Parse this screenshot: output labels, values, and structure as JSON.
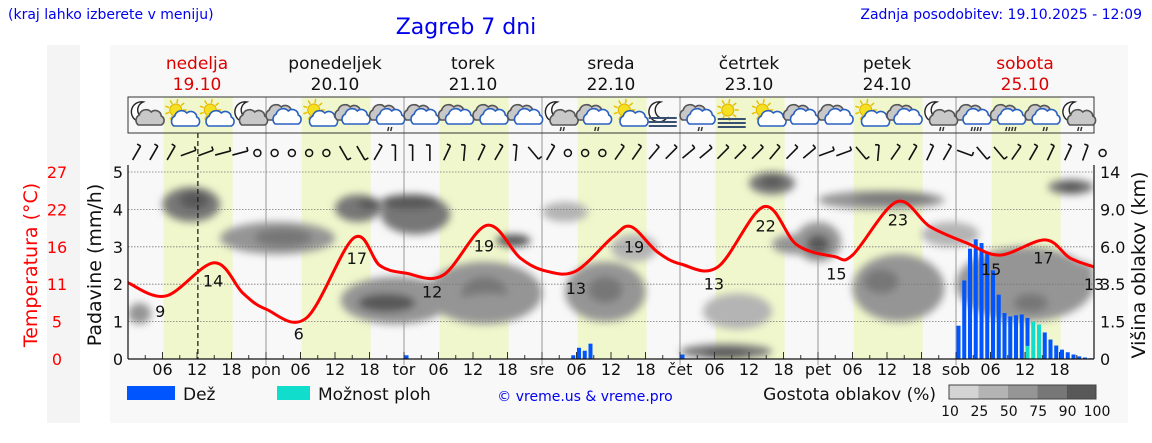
{
  "header": {
    "hint": "(kraj lahko izberete v meniju)",
    "title": "Zagreb 7 dni",
    "updated": "Zadnja posodobitev: 19.10.2025 - 12:09"
  },
  "colors": {
    "temperature": "#ff0000",
    "rain": "#0055ff",
    "showers": "#11ddcc",
    "daylight": "#f0f7cc",
    "weekend_day": "#dd0000",
    "link": "#0000ee"
  },
  "days": [
    {
      "name": "nedelja",
      "date": "19.10",
      "abbr": "",
      "weekend": true
    },
    {
      "name": "ponedeljek",
      "date": "20.10",
      "abbr": "pon",
      "weekend": false
    },
    {
      "name": "torek",
      "date": "21.10",
      "abbr": "tor",
      "weekend": false
    },
    {
      "name": "sreda",
      "date": "22.10",
      "abbr": "sre",
      "weekend": false
    },
    {
      "name": "četrtek",
      "date": "23.10",
      "abbr": "čet",
      "weekend": false
    },
    {
      "name": "petek",
      "date": "24.10",
      "abbr": "pet",
      "weekend": false
    },
    {
      "name": "sobota",
      "date": "25.10",
      "abbr": "sob",
      "weekend": true
    }
  ],
  "hour_ticks": [
    "06",
    "12",
    "18"
  ],
  "current_time": "19.10.2025 12:09",
  "icons": [
    "moon-cloud",
    "sun-cloud",
    "sun-cloud",
    "moon-cloud",
    "cloudy",
    "sun-cloud",
    "cloudy",
    "cloudy-drizzle",
    "cloudy",
    "cloudy",
    "cloudy",
    "cloudy",
    "moon-cloud-drizzle",
    "cloudy-drizzle",
    "sun-cloud",
    "moon-fog",
    "cloudy-drizzle",
    "sun-fog",
    "sun-cloud",
    "cloudy",
    "cloudy",
    "sun-cloud",
    "cloudy",
    "moon-cloud-drizzle",
    "cloudy-rain",
    "cloudy-rain",
    "cloudy-drizzle",
    "moon-cloud-drizzle"
  ],
  "wind_direction_deg_3h": [
    210,
    210,
    210,
    250,
    250,
    255,
    255,
    "calm",
    "calm",
    "calm",
    "calm",
    "calm",
    330,
    330,
    210,
    180,
    180,
    180,
    205,
    185,
    205,
    210,
    185,
    320,
    210,
    "calm",
    "calm",
    "calm",
    215,
    215,
    220,
    225,
    230,
    230,
    225,
    225,
    225,
    220,
    225,
    230,
    250,
    250,
    320,
    185,
    215,
    210,
    205,
    210,
    290,
    320,
    320,
    215,
    210,
    205,
    205,
    200,
    "calm"
  ],
  "chart_data": {
    "type": "line+bar",
    "x_unit": "hours from 19.10 00:00",
    "xlim": [
      0,
      168
    ],
    "left_axis": {
      "label": "Padavine (mm/h)",
      "ticks": [
        "0",
        "1",
        "2",
        "3",
        "4",
        "5"
      ],
      "ylim": [
        0,
        5
      ]
    },
    "temp_axis": {
      "label": "Temperatura (°C)",
      "ticks": [
        "0",
        "5",
        "11",
        "16",
        "22",
        "27"
      ],
      "ylim": [
        0,
        27
      ]
    },
    "right_axis": {
      "label": "Višina oblakov (km)",
      "ticks": [
        "0",
        "1.5",
        "3.5",
        "6.0",
        "9.0",
        "14"
      ]
    },
    "grid": true,
    "daylight_hours": [
      6.2,
      18.2
    ],
    "temperature": {
      "hours": [
        0,
        6.6,
        15,
        20,
        24,
        31,
        39.3,
        43.8,
        48.3,
        54.8,
        62.4,
        68.2,
        72.7,
        77.9,
        84.3,
        87.5,
        92,
        96.2,
        102.6,
        110.6,
        116.3,
        122.8,
        126,
        133.7,
        139.5,
        146,
        151.7,
        159.5,
        163.8,
        168
      ],
      "values": [
        11.0,
        9.1,
        13.9,
        9.5,
        7.2,
        5.9,
        17.5,
        13.5,
        12.4,
        12.1,
        19.3,
        14.6,
        12.7,
        12.7,
        17.6,
        19.1,
        15.5,
        13.7,
        13.3,
        22.0,
        16.5,
        14.8,
        15.0,
        22.7,
        19.1,
        16.7,
        15.0,
        17.2,
        14.6,
        13.3
      ]
    },
    "temperature_labels": [
      {
        "hour": 5.6,
        "value": "9"
      },
      {
        "hour": 14.8,
        "value": "14"
      },
      {
        "hour": 29.7,
        "value": "6"
      },
      {
        "hour": 39.8,
        "value": "17"
      },
      {
        "hour": 52.9,
        "value": "12"
      },
      {
        "hour": 61.9,
        "value": "19"
      },
      {
        "hour": 77.9,
        "value": "13"
      },
      {
        "hour": 88,
        "value": "19"
      },
      {
        "hour": 101.9,
        "value": "13"
      },
      {
        "hour": 110.9,
        "value": "22"
      },
      {
        "hour": 123.2,
        "value": "15"
      },
      {
        "hour": 133.9,
        "value": "23"
      },
      {
        "hour": 150.1,
        "value": "15"
      },
      {
        "hour": 159.2,
        "value": "17"
      },
      {
        "hour": 168,
        "value": "13"
      }
    ],
    "rain": {
      "hours": [
        48,
        77,
        78,
        79,
        80,
        96,
        144,
        145,
        146,
        147,
        148,
        149,
        150,
        151,
        152,
        153,
        154,
        155,
        156,
        159,
        160,
        161,
        162,
        163,
        164,
        165,
        166,
        167
      ],
      "values": [
        0.1,
        0.1,
        0.3,
        0.22,
        0.41,
        0.12,
        0.89,
        2.1,
        2.95,
        3.2,
        3.1,
        2.84,
        2.37,
        1.72,
        1.23,
        1.14,
        1.17,
        1.19,
        1.1,
        0.71,
        0.52,
        0.36,
        0.25,
        0.18,
        0.12,
        0.07,
        0.04,
        0.02
      ]
    },
    "showers": {
      "hours": [
        156,
        157,
        158
      ],
      "values": [
        0.35,
        1.0,
        0.92
      ]
    },
    "cloud_density_legend": {
      "title": "Gostota oblakov (%)",
      "ticks": [
        "10",
        "25",
        "50",
        "75",
        "90",
        "100"
      ],
      "colors": [
        "#d4d4d4",
        "#b4b4b4",
        "#959595",
        "#777777",
        "#585858"
      ]
    },
    "clouds": [
      [
        0,
        4,
        1.4,
        2.5,
        50
      ],
      [
        6,
        16,
        8,
        12,
        75
      ],
      [
        9,
        14,
        9,
        11.5,
        90
      ],
      [
        16,
        36,
        5.5,
        8,
        50
      ],
      [
        22,
        32,
        6,
        7.5,
        75
      ],
      [
        36,
        44,
        8,
        11,
        75
      ],
      [
        40,
        44,
        9,
        10.5,
        90
      ],
      [
        44,
        56,
        7,
        11,
        75
      ],
      [
        44,
        54,
        9,
        11,
        90
      ],
      [
        37,
        56,
        1.4,
        4,
        60
      ],
      [
        40,
        50,
        2,
        3,
        90
      ],
      [
        52,
        72,
        1.4,
        5,
        50
      ],
      [
        58,
        66,
        2,
        4,
        75
      ],
      [
        64,
        70,
        6,
        7,
        90
      ],
      [
        56,
        70,
        1.5,
        3,
        60
      ],
      [
        76,
        90,
        1.5,
        5,
        50
      ],
      [
        80,
        86,
        2.5,
        4,
        75
      ],
      [
        72,
        80,
        8,
        10,
        25
      ],
      [
        84,
        92,
        5,
        7,
        25
      ],
      [
        96,
        112,
        0,
        0.6,
        75
      ],
      [
        100,
        108,
        0,
        0.4,
        90
      ],
      [
        100,
        112,
        1.2,
        3,
        40
      ],
      [
        108,
        116,
        11,
        14,
        75
      ],
      [
        110,
        114,
        12,
        13.5,
        90
      ],
      [
        112,
        120,
        5.5,
        7,
        60
      ],
      [
        116,
        124,
        5,
        8,
        60
      ],
      [
        118,
        122,
        5.5,
        7,
        90
      ],
      [
        120,
        142,
        9,
        11.5,
        50
      ],
      [
        126,
        140,
        10,
        11,
        75
      ],
      [
        126,
        142,
        1.5,
        5.5,
        50
      ],
      [
        128,
        134,
        3,
        4.5,
        80
      ],
      [
        138,
        148,
        6,
        8,
        25
      ],
      [
        144,
        168,
        1.5,
        6,
        50
      ],
      [
        154,
        160,
        2,
        3,
        80
      ],
      [
        160,
        168,
        11,
        13,
        75
      ],
      [
        162,
        166,
        11.5,
        12.5,
        90
      ],
      [
        164,
        168,
        3.5,
        5,
        60
      ]
    ]
  },
  "legend": {
    "rain": "Dež",
    "showers": "Možnost ploh",
    "copyright": "© vreme.us & vreme.pro"
  }
}
